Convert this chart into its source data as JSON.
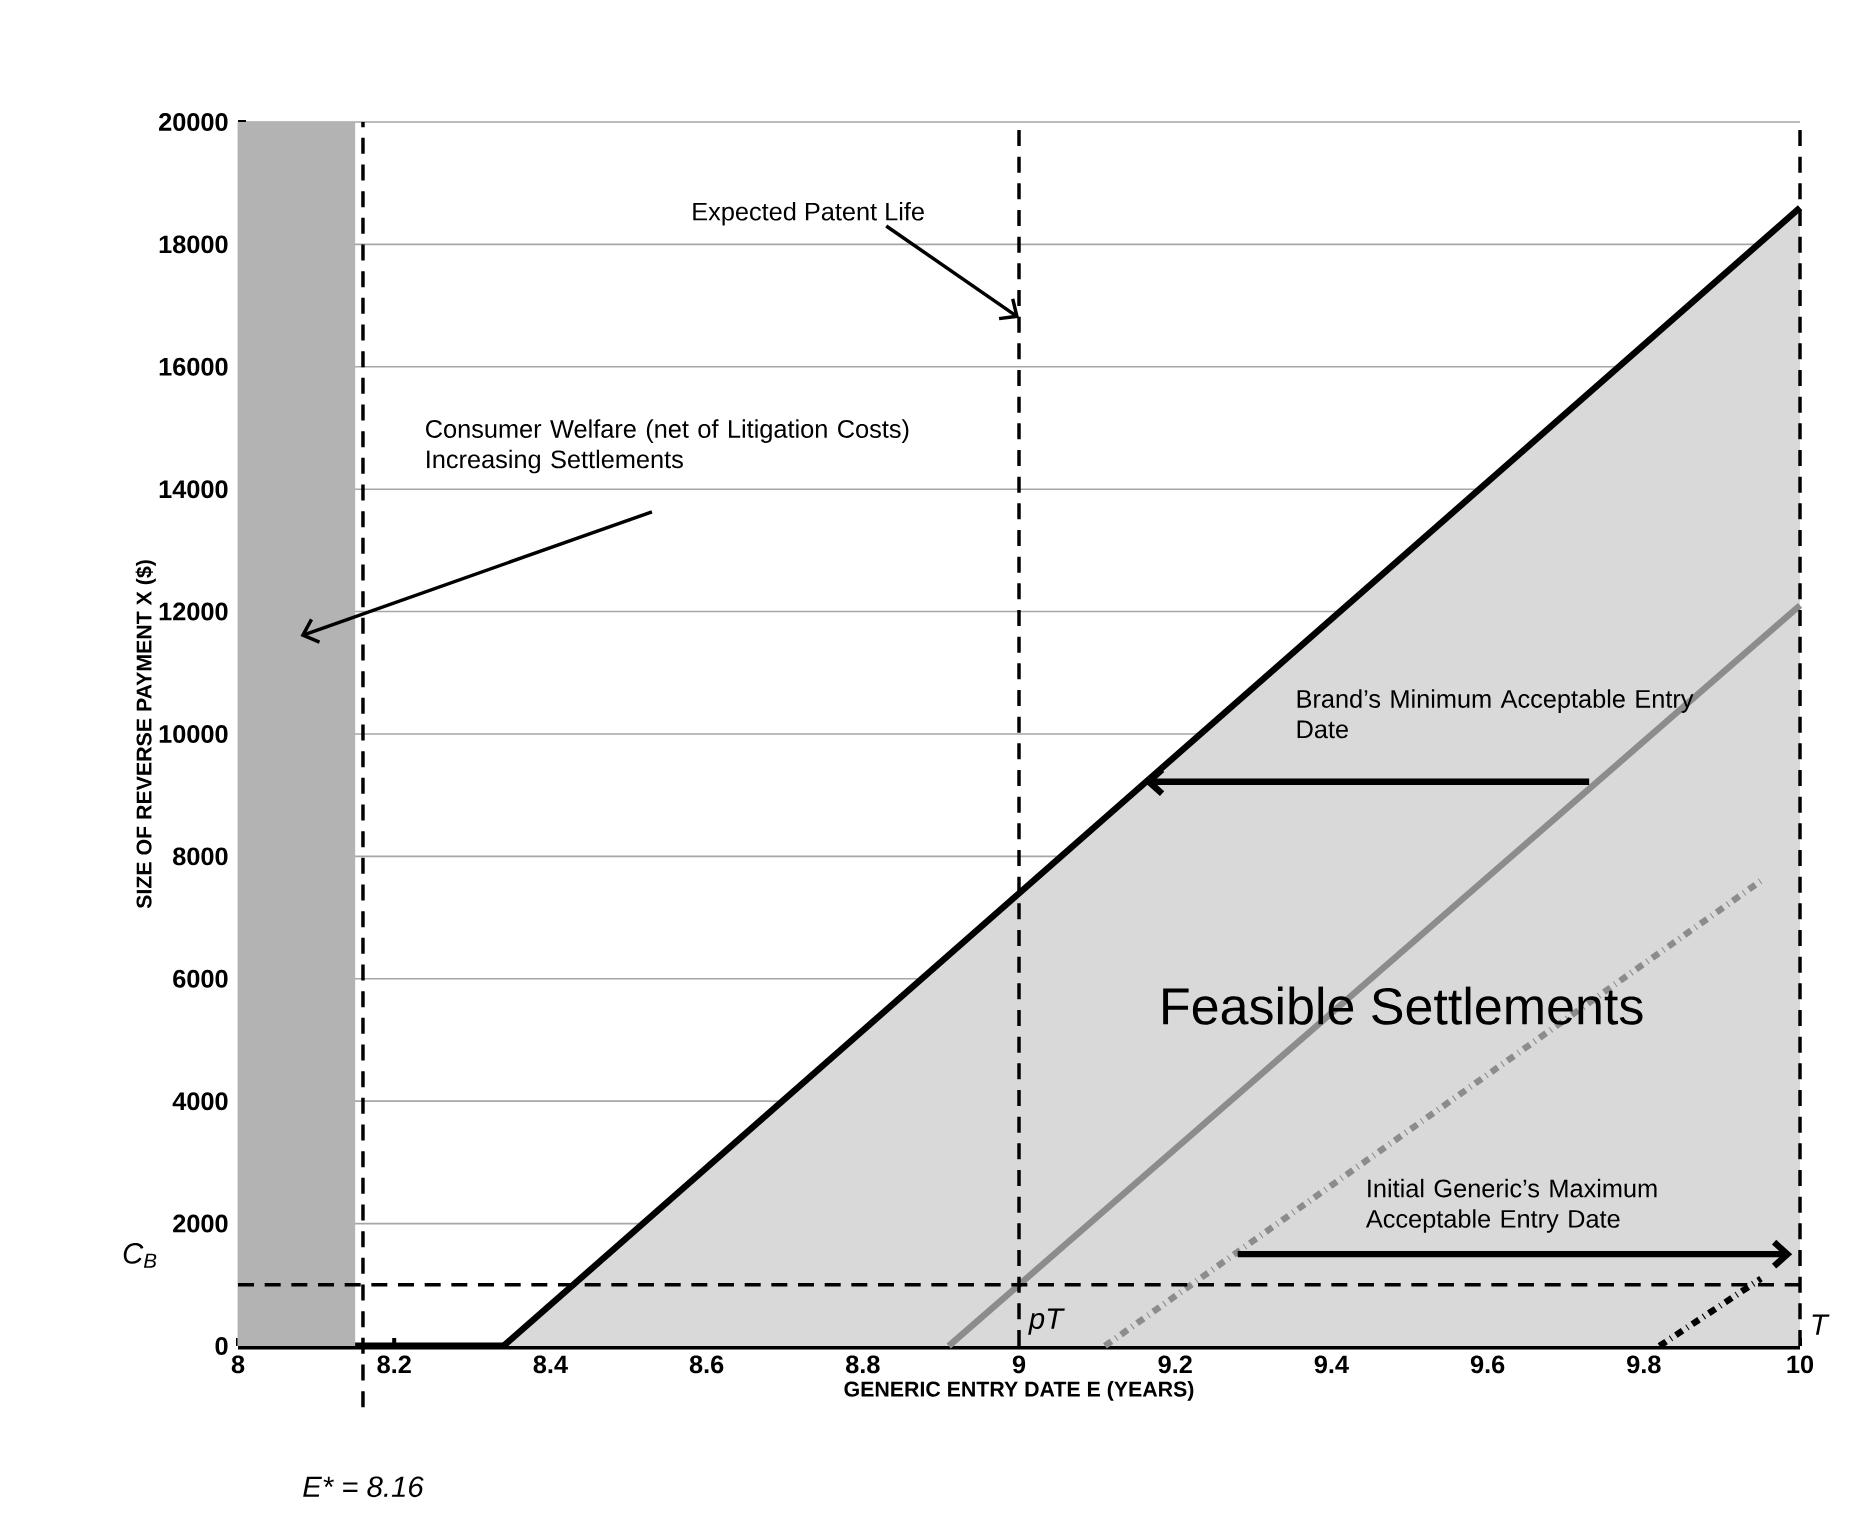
{
  "chart_data": {
    "type": "line",
    "xlabel": "GENERIC ENTRY DATE E (YEARS)",
    "ylabel": "SIZE OF REVERSE PAYMENT X ($)",
    "xlim": [
      8,
      10
    ],
    "ylim": [
      0,
      20000
    ],
    "xticks": [
      8,
      8.2,
      8.4,
      8.6,
      8.8,
      9,
      9.2,
      9.4,
      9.6,
      9.8,
      10
    ],
    "yticks": [
      0,
      2000,
      4000,
      6000,
      8000,
      10000,
      12000,
      14000,
      16000,
      18000,
      20000
    ],
    "grid": "y",
    "marker": "none",
    "series": [
      {
        "type": "area",
        "color": "#000000",
        "x": [
          8.34,
          10
        ],
        "values": [
          0,
          18600
        ],
        "line_style": "solid"
      },
      {
        "color": "#8c8c8c",
        "x": [
          8.91,
          10
        ],
        "values": [
          0,
          12100
        ],
        "line_style": "solid"
      },
      {
        "color": "#8c8c8c",
        "x": [
          9.11,
          9.95
        ],
        "values": [
          0,
          7600
        ],
        "line_style": "dashdot"
      },
      {
        "color": "#000000",
        "x": [
          9.82,
          9.95
        ],
        "values": [
          0,
          1100
        ],
        "line_style": "dashdot"
      }
    ],
    "bands": [
      {
        "axis": "x",
        "from": 8,
        "to": 8.15,
        "color": "#b3b3b3"
      }
    ],
    "ref_lines": [
      {
        "axis": "x",
        "value": 8.16,
        "label": "E* = 8.16",
        "color": "#000000",
        "line_style": "dashed"
      },
      {
        "axis": "x",
        "value": 9,
        "label": "pT",
        "color": "#000000",
        "line_style": "dashed"
      },
      {
        "axis": "x",
        "value": 10,
        "label": "T",
        "color": "#000000",
        "line_style": "dashed"
      },
      {
        "axis": "y",
        "value": 1000,
        "label": "C$_{B}$",
        "color": "#000000",
        "line_style": "dashed"
      }
    ],
    "annotations": [
      {
        "text": "Expected Patent Life",
        "x": 9,
        "y": 16800
      },
      "Consumer Welfare (net of Litigation Costs) Increasing Settlements",
      "Brand’s Minimum Acceptable Entry Date",
      "Feasible Settlements",
      "Initial Generic’s Maximum Acceptable Entry Date"
    ]
  }
}
